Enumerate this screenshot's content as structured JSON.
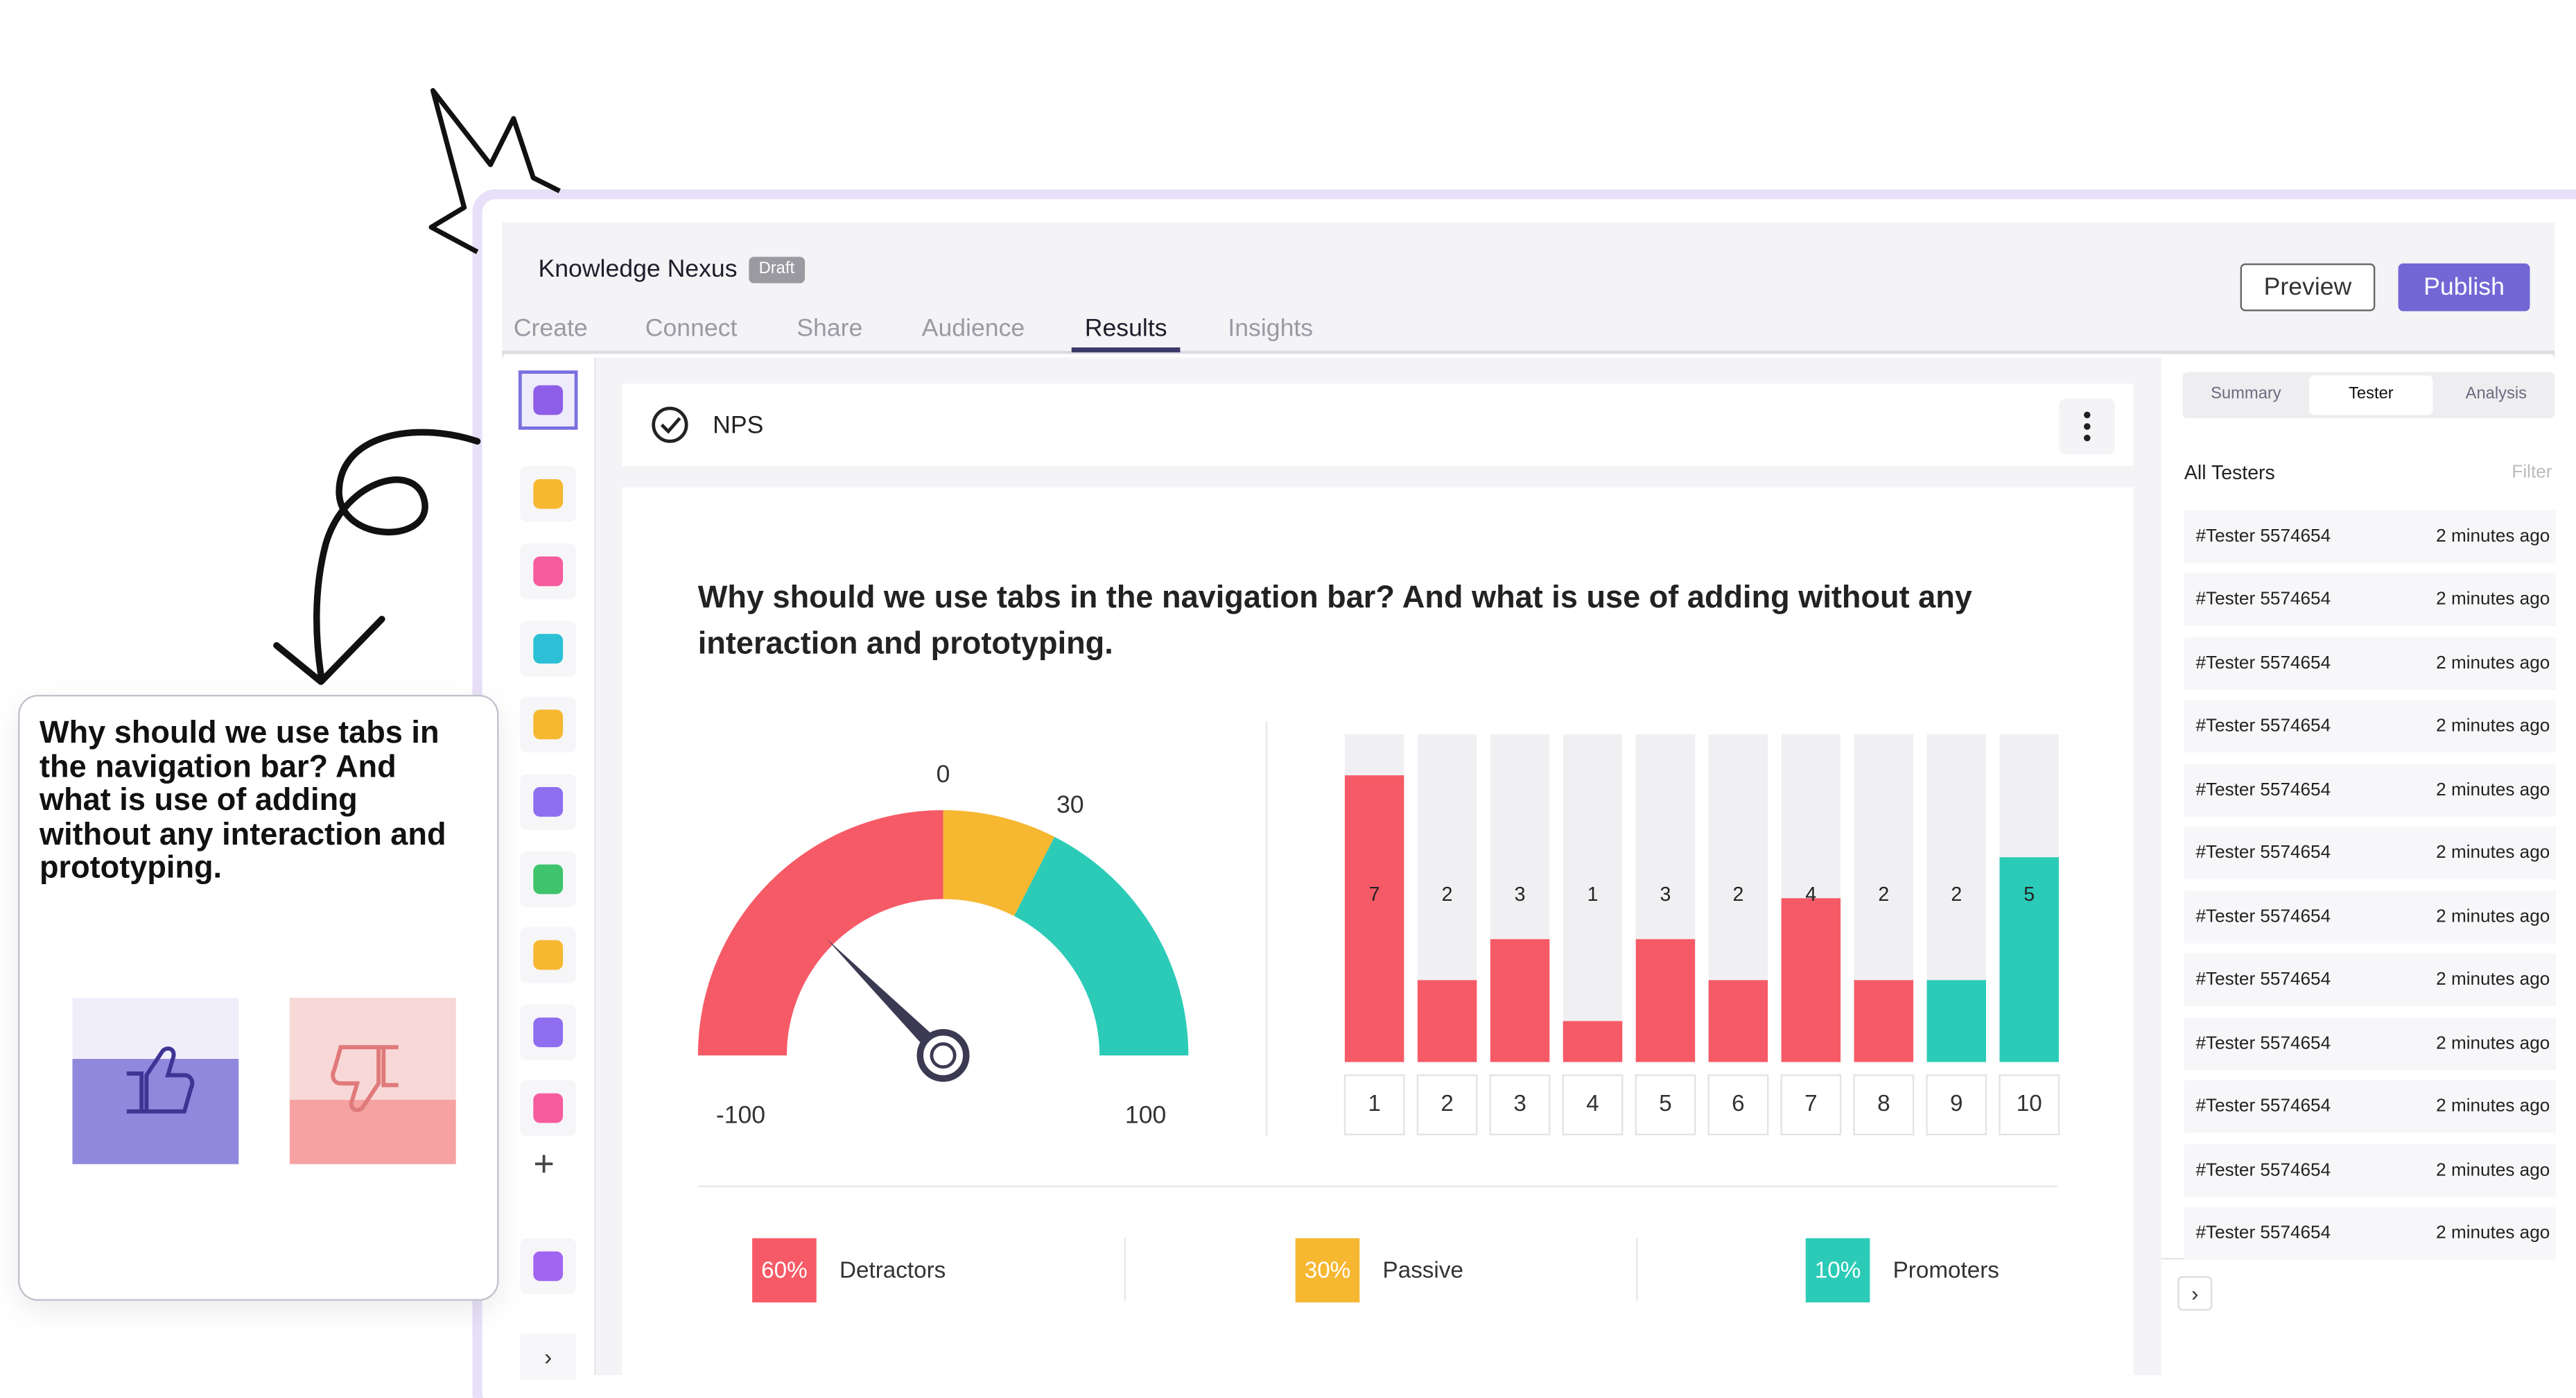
{
  "header": {
    "title": "Knowledge Nexus",
    "badge": "Draft",
    "preview": "Preview",
    "publish": "Publish"
  },
  "nav_tabs": [
    "Create",
    "Connect",
    "Share",
    "Audience",
    "Results",
    "Insights"
  ],
  "block": {
    "title": "NPS",
    "question": "Why should we use tabs in the navigation bar? And what is use of adding without any interaction and prototyping."
  },
  "gauge": {
    "min": -100,
    "max": 100,
    "ticks": [
      -100,
      0,
      30,
      100
    ],
    "colors": [
      "#f65a66",
      "#f6b731",
      "#2bcbb7"
    ],
    "needle": -50
  },
  "chart_data": {
    "type": "bar",
    "categories": [
      "1",
      "2",
      "3",
      "4",
      "5",
      "6",
      "7",
      "8",
      "9",
      "10"
    ],
    "values": [
      7,
      2,
      3,
      1,
      3,
      2,
      4,
      2,
      2,
      5
    ],
    "colors": [
      "#f65a66",
      "#f65a66",
      "#f65a66",
      "#f65a66",
      "#f65a66",
      "#f65a66",
      "#f65a66",
      "#f65a66",
      "#2bcbb7",
      "#2bcbb7"
    ],
    "ylim": [
      0,
      8
    ]
  },
  "summary": [
    {
      "value": 60,
      "value_label": "60%",
      "label": "Detractors",
      "color": "#f65a66"
    },
    {
      "value": 30,
      "value_label": "30%",
      "label": "Passive",
      "color": "#f6b731"
    },
    {
      "value": 10,
      "value_label": "10%",
      "label": "Promoters",
      "color": "#2bcbb7"
    }
  ],
  "panel_tabs": [
    "Summary",
    "Tester",
    "Analysis"
  ],
  "panel": {
    "heading": "All Testers",
    "filter": "Filter"
  },
  "testers": [
    {
      "name": "#Tester 5574654",
      "time": "2 minutes ago"
    },
    {
      "name": "#Tester 5574654",
      "time": "2 minutes ago"
    },
    {
      "name": "#Tester 5574654",
      "time": "2 minutes ago"
    },
    {
      "name": "#Tester 5574654",
      "time": "2 minutes ago"
    },
    {
      "name": "#Tester 5574654",
      "time": "2 minutes ago"
    },
    {
      "name": "#Tester 5574654",
      "time": "2 minutes ago"
    },
    {
      "name": "#Tester 5574654",
      "time": "2 minutes ago"
    },
    {
      "name": "#Tester 5574654",
      "time": "2 minutes ago"
    },
    {
      "name": "#Tester 5574654",
      "time": "2 minutes ago"
    },
    {
      "name": "#Tester 5574654",
      "time": "2 minutes ago"
    },
    {
      "name": "#Tester 5574654",
      "time": "2 minutes ago"
    },
    {
      "name": "#Tester 5574654",
      "time": "2 minutes ago"
    }
  ]
}
